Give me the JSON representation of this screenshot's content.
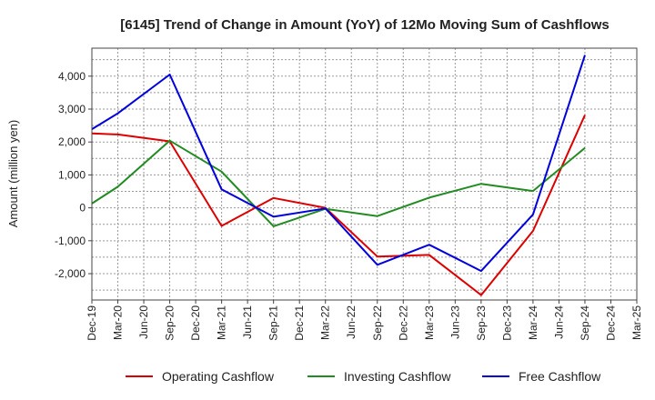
{
  "chart_data": {
    "type": "line",
    "title": "[6145]  Trend of Change in Amount (YoY) of 12Mo Moving Sum of Cashflows",
    "xlabel": "",
    "ylabel": "Amount (million yen)",
    "ylim": [
      -2800,
      4850
    ],
    "yticks": [
      -2000,
      -1000,
      0,
      1000,
      2000,
      3000,
      4000
    ],
    "ytick_labels": [
      "-2,000",
      "-1,000",
      "0",
      "1,000",
      "2,000",
      "3,000",
      "4,000"
    ],
    "categories": [
      "Dec-19",
      "Mar-20",
      "Jun-20",
      "Sep-20",
      "Dec-20",
      "Mar-21",
      "Jun-21",
      "Sep-21",
      "Dec-21",
      "Mar-22",
      "Jun-22",
      "Sep-22",
      "Dec-22",
      "Mar-23",
      "Jun-23",
      "Sep-23",
      "Dec-23",
      "Mar-24",
      "Jun-24",
      "Sep-24",
      "Dec-24",
      "Mar-25"
    ],
    "grid": true,
    "legend_position": "bottom",
    "series": [
      {
        "name": "Operating Cashflow",
        "color": "#dd0000",
        "values": [
          2260,
          2230,
          null,
          2020,
          null,
          -550,
          null,
          300,
          null,
          0,
          null,
          -1480,
          null,
          -1430,
          null,
          -2650,
          null,
          -700,
          null,
          2820,
          null,
          null
        ]
      },
      {
        "name": "Investing Cashflow",
        "color": "#228b22",
        "values": [
          130,
          640,
          null,
          2040,
          null,
          1100,
          null,
          -560,
          null,
          -30,
          null,
          -250,
          null,
          310,
          null,
          730,
          null,
          510,
          null,
          1820,
          null,
          null
        ]
      },
      {
        "name": "Free Cashflow",
        "color": "#0000dd",
        "values": [
          2390,
          2870,
          null,
          4050,
          null,
          560,
          null,
          -270,
          null,
          -20,
          null,
          -1730,
          null,
          -1120,
          null,
          -1920,
          null,
          -200,
          null,
          4640,
          null,
          null
        ]
      }
    ]
  }
}
